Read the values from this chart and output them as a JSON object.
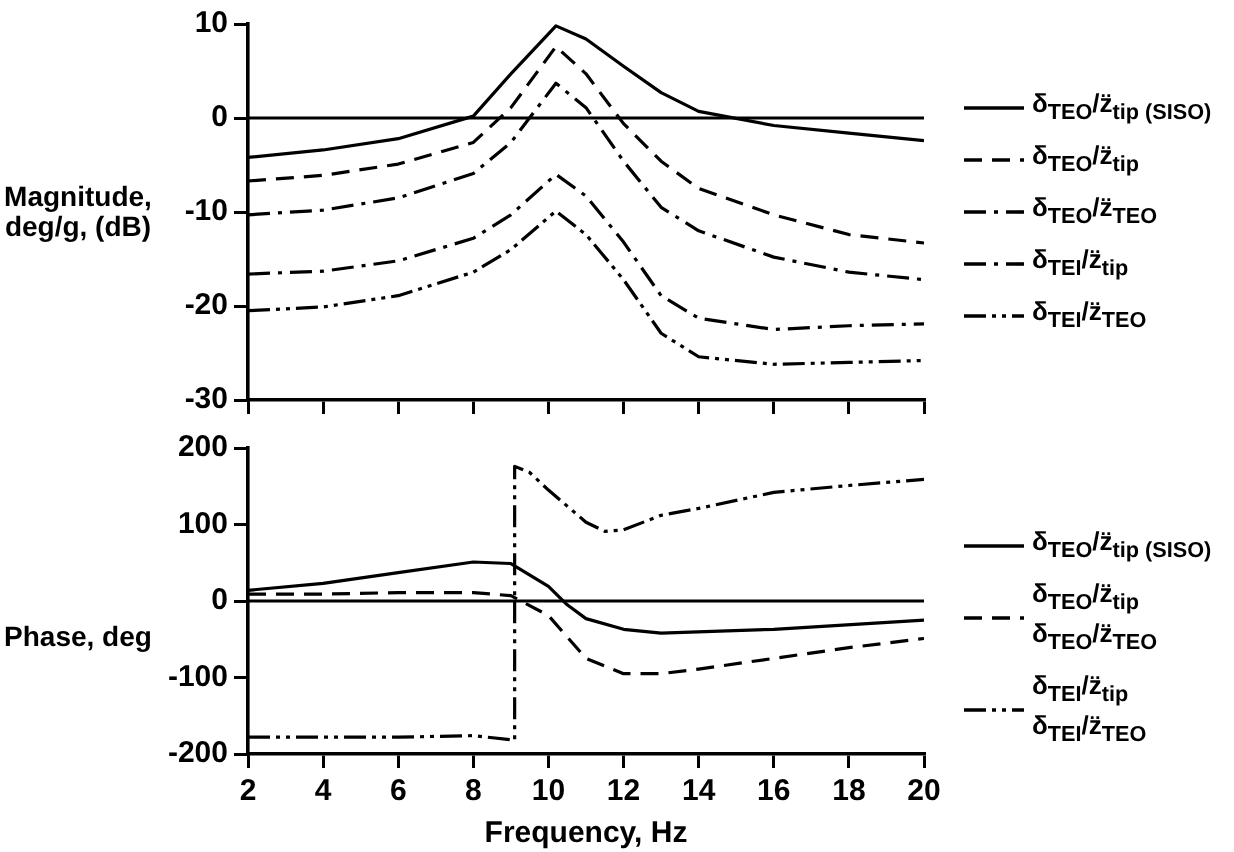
{
  "chart_data": [
    {
      "type": "line",
      "ylabel": "Magnitude, deg/g, (dB)",
      "xlim": [
        2,
        20
      ],
      "xticks": [
        2,
        4,
        6,
        8,
        10,
        12,
        14,
        16,
        18,
        20
      ],
      "ylim": [
        -30,
        10
      ],
      "yticks": [
        -30,
        -20,
        -10,
        0,
        10
      ],
      "tick_labels": "y",
      "grid": false,
      "legend": "right",
      "marker": "none",
      "ref_lines": [
        {
          "axis": "y",
          "value": 0
        }
      ],
      "series": [
        {
          "name": "δ$_{TEO}$/z̈$_{tip (SISO)}$",
          "color": "#000000",
          "line_style": "solid",
          "x": [
            2,
            4,
            6,
            8,
            9,
            10.2,
            11,
            12,
            13,
            14,
            16,
            18,
            20
          ],
          "values": [
            -4.2,
            -3.4,
            -2.2,
            0.2,
            4.7,
            9.8,
            8.4,
            5.5,
            2.7,
            0.7,
            -0.8,
            -1.6,
            -2.4
          ]
        },
        {
          "name": "δ$_{TEO}$/z̈$_{tip}$",
          "color": "#000000",
          "line_style": "dashed",
          "x": [
            2,
            4,
            6,
            8,
            9,
            10.2,
            11,
            12,
            13,
            14,
            16,
            18,
            20
          ],
          "values": [
            -6.7,
            -6.1,
            -4.9,
            -2.6,
            1.1,
            7.6,
            4.7,
            -0.6,
            -4.6,
            -7.5,
            -10.3,
            -12.4,
            -13.3
          ]
        },
        {
          "name": "δ$_{TEO}$/z̈$_{TEO}$",
          "color": "#000000",
          "line_style": "dashdot",
          "x": [
            2,
            4,
            6,
            8,
            9,
            10.2,
            11,
            12,
            13,
            14,
            16,
            18,
            20
          ],
          "values": [
            -10.3,
            -9.8,
            -8.5,
            -5.9,
            -2.6,
            3.7,
            1.1,
            -4.6,
            -9.5,
            -12,
            -14.8,
            -16.4,
            -17.2
          ]
        },
        {
          "name": "δ$_{TEI}$/z̈$_{tip}$",
          "color": "#000000",
          "line_style": "dashdot",
          "x": [
            2,
            4,
            6,
            8,
            9,
            10.2,
            11,
            12,
            13,
            14,
            16,
            18,
            20
          ],
          "values": [
            -16.6,
            -16.3,
            -15.2,
            -12.8,
            -10.3,
            -6,
            -8.3,
            -13.2,
            -18.9,
            -21.3,
            -22.5,
            -22.1,
            -21.9
          ]
        },
        {
          "name": "δ$_{TEI}$/z̈$_{TEO}$",
          "color": "#000000",
          "line_style": "dashdotdot",
          "x": [
            2,
            4,
            6,
            8,
            9,
            10.2,
            11,
            12,
            13,
            14,
            16,
            18,
            20
          ],
          "values": [
            -20.5,
            -20.1,
            -18.9,
            -16.4,
            -14,
            -9.9,
            -12.4,
            -17.2,
            -22.9,
            -25.4,
            -26.2,
            -26,
            -25.8
          ]
        }
      ]
    },
    {
      "type": "line",
      "ylabel": "Phase, deg",
      "xlabel": "Frequency, Hz",
      "xlim": [
        2,
        20
      ],
      "xticks": [
        2,
        4,
        6,
        8,
        10,
        12,
        14,
        16,
        18,
        20
      ],
      "ylim": [
        -200,
        200
      ],
      "yticks": [
        -200,
        -100,
        0,
        100,
        200
      ],
      "grid": false,
      "legend": "right",
      "marker": "none",
      "ref_lines": [
        {
          "axis": "y",
          "value": 0
        }
      ],
      "series": [
        {
          "name": "δ$_{TEO}$/z̈$_{tip (SISO)}$",
          "color": "#000000",
          "line_style": "solid",
          "x": [
            2,
            4,
            6,
            8,
            9,
            10,
            10.5,
            11,
            12,
            13,
            16,
            20
          ],
          "values": [
            14,
            23,
            37,
            51,
            49,
            19,
            -5,
            -23,
            -37,
            -42,
            -37,
            -25
          ]
        },
        {
          "name": "δ$_{TEO}$/z̈$_{tip}$\nδ$_{TEO}$/z̈$_{TEO}$",
          "color": "#000000",
          "line_style": "dashed",
          "x": [
            2,
            4,
            6,
            8,
            9,
            10,
            11,
            12,
            13,
            14,
            16,
            18,
            20
          ],
          "values": [
            9,
            9,
            11,
            11,
            7,
            -19,
            -75,
            -95,
            -95,
            -89,
            -75,
            -61,
            -49
          ]
        },
        {
          "name": "δ$_{TEI}$/z̈$_{tip}$\nδ$_{TEI}$/z̈$_{TEO}$",
          "color": "#000000",
          "line_style": "dashdotdot",
          "x": [
            2,
            6,
            8,
            9.1,
            9.1,
            9.5,
            10,
            11,
            11.5,
            12,
            13,
            14,
            16,
            18,
            20
          ],
          "values": [
            -178,
            -178,
            -176,
            -182,
            176,
            168,
            145,
            103,
            91,
            93,
            112,
            121,
            142,
            151,
            159
          ]
        }
      ]
    }
  ]
}
